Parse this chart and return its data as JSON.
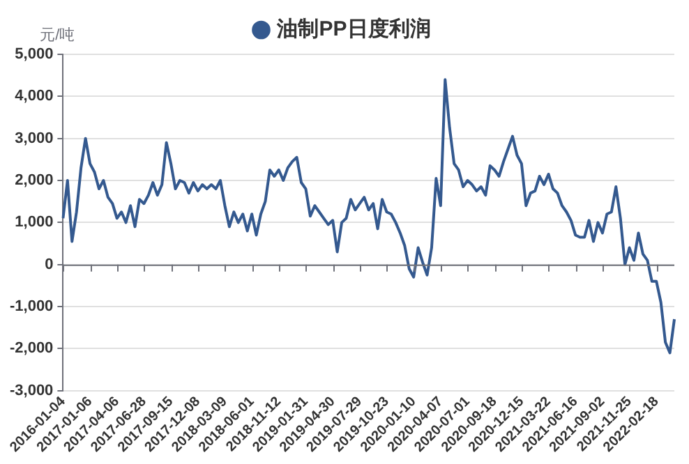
{
  "chart_data": {
    "type": "line",
    "ylabel": "元/吨",
    "categories": [
      "2016-01-04",
      null,
      null,
      null,
      null,
      null,
      "2017-01-06",
      null,
      null,
      null,
      null,
      null,
      "2017-04-06",
      null,
      null,
      null,
      null,
      null,
      "2017-06-28",
      null,
      null,
      null,
      null,
      null,
      "2017-09-15",
      null,
      null,
      null,
      null,
      null,
      "2017-12-08",
      null,
      null,
      null,
      null,
      null,
      "2018-03-09",
      null,
      null,
      null,
      null,
      null,
      "2018-06-01",
      null,
      null,
      null,
      null,
      null,
      "2018-11-12",
      null,
      null,
      null,
      null,
      null,
      "2019-01-31",
      null,
      null,
      null,
      null,
      null,
      "2019-04-30",
      null,
      null,
      null,
      null,
      null,
      "2019-07-29",
      null,
      null,
      null,
      null,
      null,
      "2019-10-23",
      null,
      null,
      null,
      null,
      null,
      "2020-01-10",
      null,
      null,
      null,
      null,
      null,
      "2020-04-07",
      null,
      null,
      null,
      null,
      null,
      "2020-07-01",
      null,
      null,
      null,
      null,
      null,
      "2020-09-18",
      null,
      null,
      null,
      null,
      null,
      "2020-12-15",
      null,
      null,
      null,
      null,
      null,
      "2021-03-22",
      null,
      null,
      null,
      null,
      null,
      "2021-06-16",
      null,
      null,
      null,
      null,
      null,
      "2021-09-02",
      null,
      null,
      null,
      null,
      null,
      "2021-11-25",
      null,
      null,
      null,
      null,
      null,
      "2022-02-18",
      null,
      null,
      null,
      null
    ],
    "series": [
      {
        "name": "油制PP日度利润",
        "color": "#34598f",
        "values": [
          1100,
          2000,
          550,
          1250,
          2300,
          3000,
          2400,
          2200,
          1800,
          2000,
          1600,
          1450,
          1100,
          1250,
          1000,
          1400,
          900,
          1550,
          1450,
          1650,
          1950,
          1650,
          1900,
          2900,
          2400,
          1800,
          2000,
          1950,
          1700,
          1950,
          1750,
          1900,
          1800,
          1900,
          1800,
          2000,
          1400,
          900,
          1250,
          1000,
          1200,
          800,
          1200,
          700,
          1200,
          1500,
          2250,
          2100,
          2250,
          2000,
          2300,
          2450,
          2550,
          1950,
          1800,
          1150,
          1400,
          1250,
          1100,
          950,
          1050,
          300,
          1000,
          1100,
          1550,
          1300,
          1450,
          1600,
          1300,
          1450,
          850,
          1550,
          1250,
          1200,
          1000,
          750,
          450,
          -100,
          -300,
          400,
          50,
          -250,
          400,
          2050,
          1400,
          4400,
          3250,
          2400,
          2250,
          1850,
          2000,
          1900,
          1750,
          1850,
          1650,
          2350,
          2250,
          2100,
          2450,
          2750,
          3050,
          2600,
          2400,
          1400,
          1700,
          1750,
          2100,
          1900,
          2150,
          1800,
          1700,
          1400,
          1250,
          1050,
          700,
          650,
          650,
          1050,
          550,
          1000,
          750,
          1200,
          1250,
          1850,
          1100,
          0,
          400,
          100,
          750,
          250,
          100,
          -400,
          -400,
          -900,
          -1850,
          -2100,
          -1300
        ]
      }
    ],
    "ylim": [
      -3000,
      5000
    ],
    "yticks": [
      {
        "value": -3000,
        "label": "-3,000"
      },
      {
        "value": -2000,
        "label": "-2,000"
      },
      {
        "value": -1000,
        "label": "-1,000"
      },
      {
        "value": 0,
        "label": "0"
      },
      {
        "value": 1000,
        "label": "1,000"
      },
      {
        "value": 2000,
        "label": "2,000"
      },
      {
        "value": 3000,
        "label": "3,000"
      },
      {
        "value": 4000,
        "label": "4,000"
      },
      {
        "value": 5000,
        "label": "5,000"
      }
    ],
    "grid": "y",
    "legend": "top",
    "marker": "none",
    "line_style": "solid"
  }
}
